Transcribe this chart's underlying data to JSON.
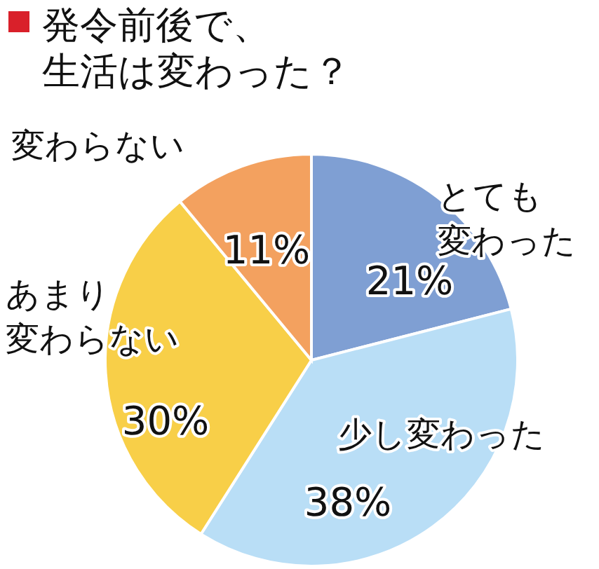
{
  "chart_data": {
    "type": "pie",
    "title": "発令前後で、生活は変わった？",
    "categories": [
      "とても変わった",
      "少し変わった",
      "あまり変わらない",
      "変わらない"
    ],
    "values": [
      21,
      38,
      30,
      11
    ],
    "colors": [
      "#7f9fd3",
      "#b9def6",
      "#f8cf48",
      "#f3a15f"
    ],
    "value_labels": [
      "21%",
      "38%",
      "30%",
      "11%"
    ]
  }
}
